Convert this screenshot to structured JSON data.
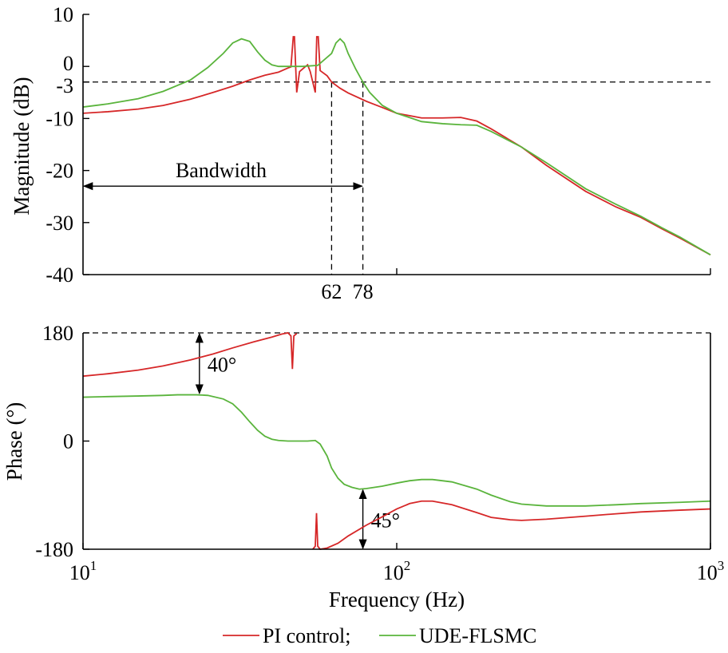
{
  "chart_data": [
    {
      "type": "line",
      "panel": "magnitude",
      "ylabel": "Magnitude (dB)",
      "xscale": "log",
      "xlim": [
        10,
        1000
      ],
      "ylim": [
        -40,
        10
      ],
      "yticks": [
        {
          "value": 10,
          "label": "10"
        },
        {
          "value": 0,
          "label": "0"
        },
        {
          "value": -3,
          "label": "-3"
        },
        {
          "value": -10,
          "label": "-10"
        },
        {
          "value": -20,
          "label": "-20"
        },
        {
          "value": -30,
          "label": "-30"
        },
        {
          "value": -40,
          "label": "-40"
        }
      ],
      "reference_lines": [
        {
          "axis": "y",
          "value": -3,
          "style": "dashed"
        },
        {
          "axis": "x",
          "value": 62,
          "style": "dashed",
          "label": "62"
        },
        {
          "axis": "x",
          "value": 78,
          "style": "dashed",
          "label": "78"
        }
      ],
      "annotations": [
        {
          "type": "double-arrow",
          "from_x": 10,
          "to_x": 78,
          "y": -23,
          "label": "Bandwidth"
        }
      ],
      "series": [
        {
          "name": "PI control",
          "color": "#d62728",
          "points": [
            [
              10,
              -9
            ],
            [
              12,
              -8.7
            ],
            [
              15,
              -8.2
            ],
            [
              18,
              -7.5
            ],
            [
              22,
              -6.3
            ],
            [
              26,
              -5
            ],
            [
              30,
              -3.8
            ],
            [
              34,
              -2.6
            ],
            [
              38,
              -1.7
            ],
            [
              42,
              -1.1
            ],
            [
              45,
              -0.3
            ],
            [
              46,
              -0.1
            ],
            [
              46.8,
              5.7
            ],
            [
              47.2,
              5.7
            ],
            [
              48,
              -5
            ],
            [
              49,
              -1
            ],
            [
              51,
              -0.1
            ],
            [
              52,
              0.3
            ],
            [
              53,
              -1
            ],
            [
              55,
              -5
            ],
            [
              55.6,
              5.7
            ],
            [
              56.2,
              5.7
            ],
            [
              57,
              -0.8
            ],
            [
              60,
              -1.8
            ],
            [
              62,
              -3
            ],
            [
              66,
              -4.2
            ],
            [
              70,
              -5.1
            ],
            [
              80,
              -6.7
            ],
            [
              90,
              -7.9
            ],
            [
              100,
              -9
            ],
            [
              120,
              -9.9
            ],
            [
              140,
              -9.9
            ],
            [
              160,
              -9.8
            ],
            [
              180,
              -10.5
            ],
            [
              200,
              -12
            ],
            [
              250,
              -15.5
            ],
            [
              300,
              -19
            ],
            [
              400,
              -24
            ],
            [
              500,
              -27
            ],
            [
              600,
              -29
            ],
            [
              700,
              -31.2
            ],
            [
              800,
              -33
            ],
            [
              1000,
              -36.2
            ]
          ]
        },
        {
          "name": "UDE-FLSMC",
          "color": "#5ab43c",
          "points": [
            [
              10,
              -7.8
            ],
            [
              12,
              -7.2
            ],
            [
              15,
              -6.2
            ],
            [
              18,
              -4.8
            ],
            [
              22,
              -2.6
            ],
            [
              25,
              -0.2
            ],
            [
              28,
              2.5
            ],
            [
              30,
              4.5
            ],
            [
              32,
              5.3
            ],
            [
              34,
              4.8
            ],
            [
              36,
              2.8
            ],
            [
              38,
              1.2
            ],
            [
              40,
              0.3
            ],
            [
              42,
              0
            ],
            [
              50,
              0
            ],
            [
              56,
              0.2
            ],
            [
              62,
              2.5
            ],
            [
              64,
              4.5
            ],
            [
              66,
              5.3
            ],
            [
              68,
              4.5
            ],
            [
              70,
              2.5
            ],
            [
              74,
              -0.5
            ],
            [
              78,
              -3
            ],
            [
              82,
              -5
            ],
            [
              90,
              -7.5
            ],
            [
              100,
              -9
            ],
            [
              120,
              -10.6
            ],
            [
              140,
              -11
            ],
            [
              160,
              -11.2
            ],
            [
              180,
              -11.3
            ],
            [
              200,
              -12.5
            ],
            [
              250,
              -15.5
            ],
            [
              300,
              -18.5
            ],
            [
              400,
              -23.5
            ],
            [
              500,
              -26.5
            ],
            [
              600,
              -28.8
            ],
            [
              700,
              -31
            ],
            [
              800,
              -32.8
            ],
            [
              1000,
              -36.2
            ]
          ]
        }
      ]
    },
    {
      "type": "line",
      "panel": "phase",
      "ylabel": "Phase (°)",
      "xlabel": "Frequency (Hz)",
      "xscale": "log",
      "xlim": [
        10,
        1000
      ],
      "ylim": [
        -180,
        180
      ],
      "yticks": [
        {
          "value": 180,
          "label": "180"
        },
        {
          "value": 0,
          "label": "0"
        },
        {
          "value": -180,
          "label": "-180"
        }
      ],
      "xticks": [
        {
          "value": 10,
          "base": "10",
          "exp": "1"
        },
        {
          "value": 100,
          "base": "10",
          "exp": "2"
        },
        {
          "value": 1000,
          "base": "10",
          "exp": "3"
        }
      ],
      "reference_lines": [
        {
          "axis": "y",
          "value": 180,
          "style": "dashed"
        }
      ],
      "annotations": [
        {
          "type": "double-arrow",
          "x": 23.5,
          "from_y": 180,
          "to_y": 78,
          "label": "40°"
        },
        {
          "type": "double-arrow",
          "x": 78,
          "from_y": -80,
          "to_y": -180,
          "label": "45°"
        }
      ],
      "series": [
        {
          "name": "PI control",
          "color": "#d62728",
          "segments": [
            [
              [
                10,
                108
              ],
              [
                12,
                112
              ],
              [
                15,
                118
              ],
              [
                18,
                125
              ],
              [
                22,
                135
              ],
              [
                26,
                145
              ],
              [
                30,
                155
              ],
              [
                35,
                165
              ],
              [
                40,
                173
              ],
              [
                43,
                178
              ],
              [
                45,
                180
              ],
              [
                46,
                175
              ],
              [
                46.5,
                120
              ],
              [
                47,
                175
              ],
              [
                48,
                179
              ]
            ],
            [
              [
                54,
                -180
              ],
              [
                55,
                -175
              ],
              [
                55.5,
                -120
              ],
              [
                56,
                -175
              ],
              [
                57,
                -180
              ],
              [
                60,
                -178
              ],
              [
                65,
                -170
              ],
              [
                70,
                -158
              ],
              [
                80,
                -140
              ],
              [
                90,
                -126
              ],
              [
                100,
                -113
              ],
              [
                110,
                -104
              ],
              [
                120,
                -100
              ],
              [
                130,
                -100
              ],
              [
                150,
                -106
              ],
              [
                180,
                -119
              ],
              [
                200,
                -127
              ],
              [
                230,
                -131
              ],
              [
                250,
                -132
              ],
              [
                300,
                -130
              ],
              [
                400,
                -125
              ],
              [
                500,
                -121
              ],
              [
                600,
                -118
              ],
              [
                800,
                -115
              ],
              [
                1000,
                -113
              ]
            ]
          ]
        },
        {
          "name": "UDE-FLSMC",
          "color": "#5ab43c",
          "segments": [
            [
              [
                10,
                73
              ],
              [
                12,
                74
              ],
              [
                15,
                75
              ],
              [
                18,
                76
              ],
              [
                20,
                77
              ],
              [
                23,
                77
              ],
              [
                25,
                76
              ],
              [
                28,
                70
              ],
              [
                30,
                62
              ],
              [
                32,
                48
              ],
              [
                34,
                32
              ],
              [
                36,
                18
              ],
              [
                38,
                8
              ],
              [
                40,
                3
              ],
              [
                42,
                1
              ],
              [
                45,
                0
              ],
              [
                52,
                0
              ],
              [
                55,
                1
              ],
              [
                57,
                -5
              ],
              [
                60,
                -25
              ],
              [
                62,
                -45
              ],
              [
                65,
                -62
              ],
              [
                68,
                -72
              ],
              [
                72,
                -77
              ],
              [
                76,
                -80
              ],
              [
                80,
                -79
              ],
              [
                90,
                -75
              ],
              [
                100,
                -70
              ],
              [
                110,
                -66
              ],
              [
                120,
                -64
              ],
              [
                130,
                -64
              ],
              [
                150,
                -68
              ],
              [
                180,
                -80
              ],
              [
                200,
                -90
              ],
              [
                230,
                -101
              ],
              [
                250,
                -105
              ],
              [
                300,
                -108
              ],
              [
                400,
                -108
              ],
              [
                500,
                -106
              ],
              [
                600,
                -104
              ],
              [
                800,
                -102
              ],
              [
                1000,
                -100
              ]
            ]
          ]
        }
      ]
    }
  ],
  "legend": {
    "position": "bottom-center",
    "entries": [
      {
        "label": "PI control;",
        "color": "#d62728"
      },
      {
        "label": "UDE-FLSMC",
        "color": "#5ab43c"
      }
    ]
  }
}
